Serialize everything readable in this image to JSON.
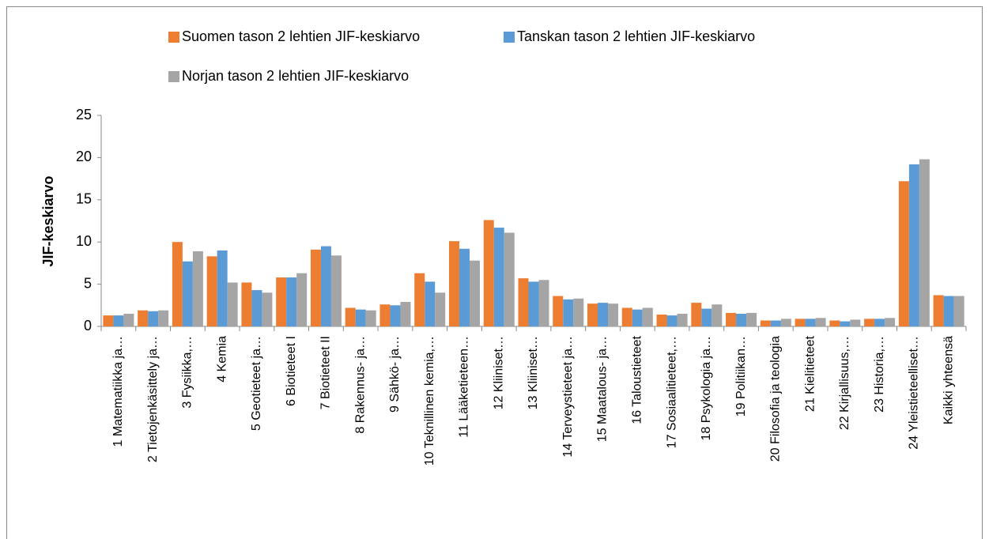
{
  "chart_data": {
    "type": "bar",
    "categories": [
      "1 Matematiikka ja…",
      "2 Tietojenkäsittely ja…",
      "3 Fysiikka,…",
      "4 Kemia",
      "5 Geotieteet ja…",
      "6 Biotieteet I",
      "7 Biotieteet II",
      "8 Rakennus- ja…",
      "9 Sähkö- ja…",
      "10 Teknillinen kemia,…",
      "11 Lääketieteen…",
      "12 Kliiniset…",
      "13 Kliiniset…",
      "14 Terveystieteet ja…",
      "15 Maatalous- ja…",
      "16 Taloustieteet",
      "17 Sosiaalitieteet,…",
      "18 Psykologia ja…",
      "19 Politiikan…",
      "20 Filosofia ja teologia",
      "21 Kielitieteet",
      "22 Kirjallisuus,…",
      "23 Historia,…",
      "24 Yleistieteelliset…",
      "Kaikki yhteensä"
    ],
    "series": [
      {
        "name": "Suomen tason 2 lehtien JIF-keskiarvo",
        "color": "#ed7d31",
        "values": [
          1.3,
          1.9,
          10.0,
          8.3,
          5.2,
          5.8,
          9.1,
          2.2,
          2.6,
          6.3,
          10.1,
          12.6,
          5.7,
          3.6,
          2.7,
          2.2,
          1.4,
          2.8,
          1.6,
          0.7,
          0.9,
          0.7,
          0.9,
          17.2,
          3.7
        ]
      },
      {
        "name": "Tanskan tason 2 lehtien JIF-keskiarvo",
        "color": "#5b9bd5",
        "values": [
          1.3,
          1.8,
          7.7,
          9.0,
          4.3,
          5.8,
          9.5,
          2.0,
          2.5,
          5.3,
          9.2,
          11.7,
          5.3,
          3.2,
          2.8,
          2.0,
          1.3,
          2.1,
          1.5,
          0.7,
          0.9,
          0.6,
          0.9,
          19.2,
          3.6
        ]
      },
      {
        "name": "Norjan tason 2 lehtien JIF-keskiarvo",
        "color": "#a5a5a5",
        "values": [
          1.5,
          1.9,
          8.9,
          5.2,
          4.0,
          6.3,
          8.4,
          1.9,
          2.9,
          4.0,
          7.8,
          11.1,
          5.5,
          3.3,
          2.7,
          2.2,
          1.5,
          2.6,
          1.6,
          0.9,
          1.0,
          0.8,
          1.0,
          19.8,
          3.6
        ]
      }
    ],
    "y_label": "JIF-keskiarvo",
    "ylim": [
      0,
      25
    ],
    "yticks": [
      0,
      5,
      10,
      15,
      20,
      25
    ],
    "grid": false,
    "legend": "top"
  }
}
